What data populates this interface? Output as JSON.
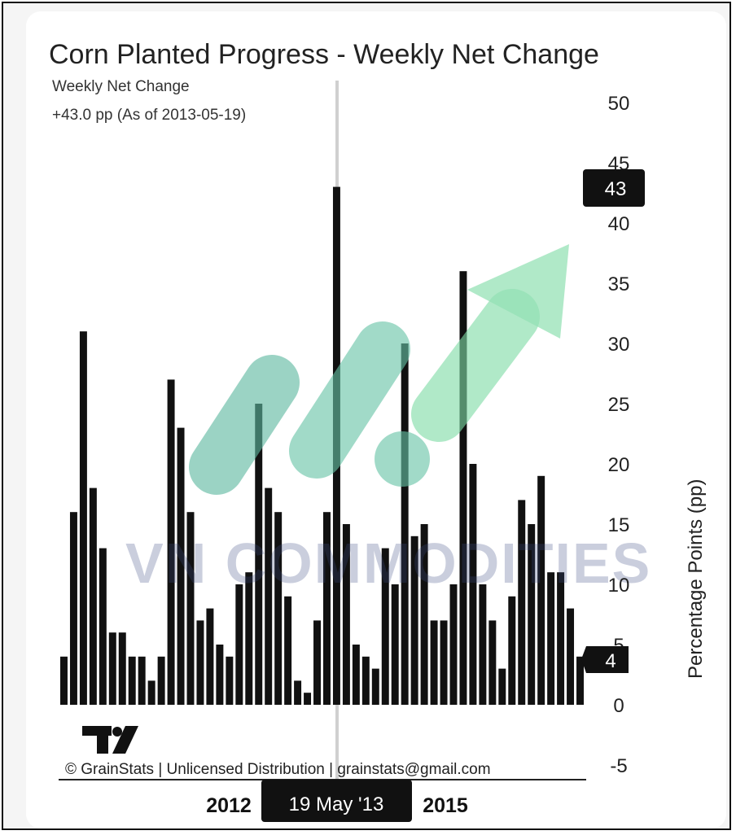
{
  "header": {
    "title": "Corn Planted Progress - Weekly Net Change",
    "series_label": "Weekly Net Change",
    "current_value": "+43.0 pp (As of 2013-05-19)"
  },
  "chart_data": {
    "type": "bar",
    "title": "Corn Planted Progress - Weekly Net Change",
    "xlabel": "",
    "ylabel": "Percentage Points (pp)",
    "ylim": [
      -5,
      50
    ],
    "yticks": [
      50,
      45,
      40,
      35,
      30,
      25,
      20,
      15,
      10,
      5,
      0,
      -5
    ],
    "xticks": [
      "2012",
      "19 May '13",
      "2015"
    ],
    "selected_label": "19 May '13",
    "highlight_value": "43",
    "last_value": "4",
    "series": [
      {
        "name": "Weekly Net Change",
        "values": [
          4,
          16,
          31,
          18,
          13,
          6,
          6,
          4,
          4,
          2,
          4,
          27,
          23,
          16,
          7,
          8,
          5,
          4,
          10,
          11,
          25,
          18,
          16,
          9,
          2,
          1,
          7,
          16,
          43,
          15,
          5,
          4,
          3,
          13,
          10,
          30,
          14,
          15,
          7,
          7,
          10,
          36,
          20,
          10,
          7,
          3,
          9,
          17,
          15,
          19,
          11,
          11,
          8,
          4
        ]
      }
    ],
    "color": "#111111"
  },
  "footer": {
    "credit": "© GrainStats | Unlicensed Distribution | grainstats@gmail.com",
    "logo_text": "TV"
  },
  "watermark": {
    "text": "VN COMMODITIES",
    "color": "#3d4f86",
    "green": "#7fdba6",
    "teal": "#5db8a0"
  }
}
